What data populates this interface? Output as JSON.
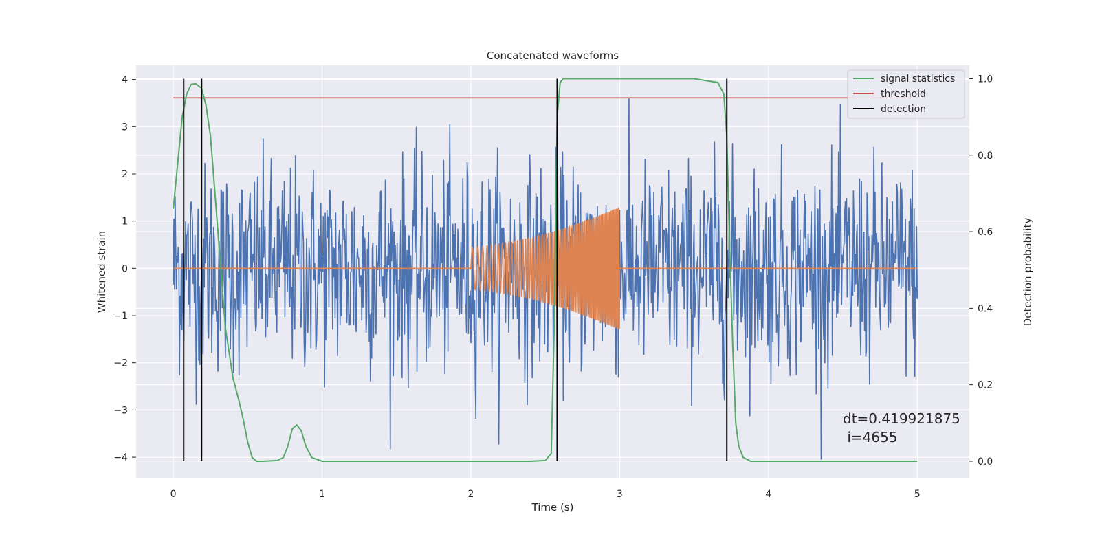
{
  "chart_data": {
    "type": "line",
    "title": "Concatenated waveforms",
    "xlabel": "Time (s)",
    "ylabel": "Whitened strain",
    "ylabel_right": "Detection probability",
    "xlim": [
      -0.25,
      5.35
    ],
    "ylim": [
      -4.45,
      4.3
    ],
    "ylim_right": [
      -0.045,
      1.035
    ],
    "xticks": [
      0,
      1,
      2,
      3,
      4,
      5
    ],
    "yticks": [
      -4,
      -3,
      -2,
      -1,
      0,
      1,
      2,
      3,
      4
    ],
    "yticks_right": [
      0.0,
      0.2,
      0.4,
      0.6,
      0.8,
      1.0
    ],
    "grid": true,
    "legend_position": "top-right",
    "series": [
      {
        "name": "",
        "axis": "left",
        "kind": "noise",
        "color": "#4c72b0",
        "x_range": [
          0,
          5
        ],
        "n_points": 1200,
        "spread": 1.1,
        "max": 3.9,
        "min": -4.05
      },
      {
        "name": "",
        "axis": "left",
        "kind": "chirp",
        "color": "#dd8452",
        "x_range": [
          0,
          5
        ],
        "chirp_start": 2.0,
        "chirp_end": 3.0,
        "amp_start": 0.45,
        "amp_end": 1.3
      },
      {
        "name": "signal statistics",
        "axis": "right",
        "color": "#55a868",
        "x": [
          0.0,
          0.03,
          0.06,
          0.09,
          0.12,
          0.15,
          0.19,
          0.22,
          0.25,
          0.28,
          0.31,
          0.35,
          0.4,
          0.44,
          0.47,
          0.5,
          0.53,
          0.56,
          0.6,
          0.7,
          0.74,
          0.77,
          0.8,
          0.83,
          0.86,
          0.89,
          0.93,
          1.0,
          1.5,
          2.0,
          2.4,
          2.5,
          2.54,
          2.56,
          2.58,
          2.6,
          2.62,
          2.7,
          3.0,
          3.5,
          3.66,
          3.7,
          3.72,
          3.74,
          3.76,
          3.78,
          3.8,
          3.83,
          3.88,
          4.0,
          4.5,
          5.0
        ],
        "y": [
          0.66,
          0.78,
          0.9,
          0.96,
          0.985,
          0.987,
          0.975,
          0.93,
          0.85,
          0.7,
          0.55,
          0.35,
          0.22,
          0.16,
          0.11,
          0.05,
          0.01,
          0.0,
          0.0,
          0.002,
          0.01,
          0.04,
          0.085,
          0.095,
          0.08,
          0.04,
          0.01,
          0.0,
          0.0,
          0.0,
          0.0,
          0.002,
          0.02,
          0.35,
          0.9,
          0.99,
          1.0,
          1.0,
          1.0,
          1.0,
          0.99,
          0.96,
          0.85,
          0.55,
          0.3,
          0.1,
          0.04,
          0.01,
          0.0,
          0.0,
          0.0,
          0.0
        ]
      },
      {
        "name": "threshold",
        "axis": "right",
        "color": "#c44e52",
        "x": [
          0,
          5
        ],
        "y": [
          0.95,
          0.95
        ]
      },
      {
        "name": "detection",
        "axis": "right",
        "color": "#000000",
        "kind": "vlines",
        "x": [
          0.07,
          0.19,
          2.58,
          3.72
        ],
        "y_range": [
          0.0,
          1.0
        ]
      }
    ],
    "annotation": {
      "line1": "dt=0.419921875",
      "line2": " i=4655"
    }
  }
}
